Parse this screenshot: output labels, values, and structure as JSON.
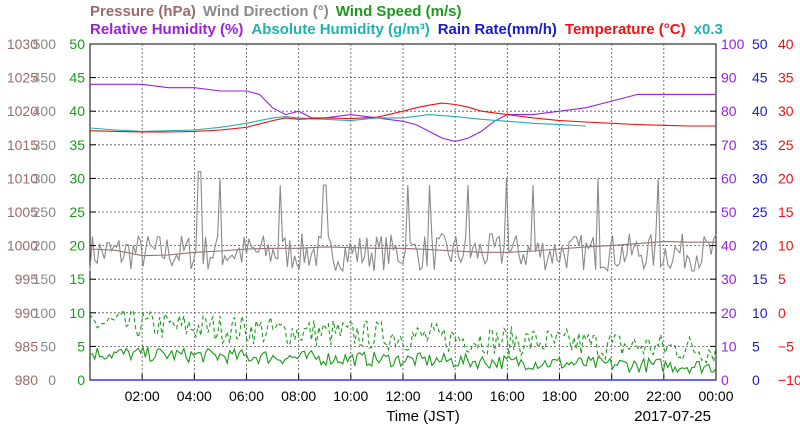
{
  "chart_data": {
    "type": "line",
    "legend": {
      "row1": [
        {
          "text": "Pressure (hPa)",
          "color": "#9b6b6b"
        },
        {
          "text": "Wind Direction (°)",
          "color": "#8a8a8a"
        },
        {
          "text": "Wind Speed (m/s)",
          "color": "#1a9a1a"
        }
      ],
      "row2": [
        {
          "text": "Relative Humidity (%)",
          "color": "#9a22dd"
        },
        {
          "text": "Absolute Humidity (g/m³)",
          "color": "#22b0b0"
        },
        {
          "text": "Rain Rate(mm/h)",
          "color": "#1a1ad0"
        },
        {
          "text": "Temperature (°C)",
          "color": "#ee1111"
        },
        {
          "text": "x0.3",
          "color": "#22b0b0"
        }
      ]
    },
    "xlabel": "Time (JST)",
    "date": "2017-07-25",
    "x_range": [
      0,
      24
    ],
    "x_ticks": [
      "02:00",
      "04:00",
      "06:00",
      "08:00",
      "10:00",
      "12:00",
      "14:00",
      "16:00",
      "18:00",
      "20:00",
      "22:00",
      "00:00"
    ],
    "grid": true,
    "axes": {
      "pressure": {
        "color": "#9b6b6b",
        "range": [
          980,
          1030
        ],
        "ticks": [
          "980",
          "985",
          "990",
          "995",
          "1000",
          "1005",
          "1010",
          "1015",
          "1020",
          "1025",
          "1030"
        ]
      },
      "wind_direction": {
        "color": "#8a8a8a",
        "range": [
          0,
          500
        ],
        "ticks": [
          "0",
          "50",
          "100",
          "150",
          "200",
          "250",
          "300",
          "350",
          "400",
          "450",
          "500"
        ]
      },
      "wind_speed": {
        "color": "#1a9a1a",
        "range": [
          0,
          50
        ],
        "ticks": [
          "0",
          "5",
          "10",
          "15",
          "20",
          "25",
          "30",
          "35",
          "40",
          "45",
          "50"
        ]
      },
      "relative_humidity": {
        "color": "#9a22dd",
        "range": [
          0,
          100
        ],
        "ticks": [
          "0",
          "10",
          "20",
          "30",
          "40",
          "50",
          "60",
          "70",
          "80",
          "90",
          "100"
        ]
      },
      "rain_rate": {
        "color": "#1a1ad0",
        "range": [
          0,
          50
        ],
        "ticks": [
          "0",
          "5",
          "10",
          "15",
          "20",
          "25",
          "30",
          "35",
          "40",
          "45",
          "50"
        ]
      },
      "temperature": {
        "color": "#ee1111",
        "range": [
          -10,
          40
        ],
        "ticks": [
          "−10",
          "−5",
          "0",
          "5",
          "10",
          "15",
          "20",
          "25",
          "30",
          "35",
          "40"
        ]
      }
    },
    "series": [
      {
        "name": "Relative Humidity (%)",
        "axis": "relative_humidity",
        "color": "#9a22dd",
        "style": "solid",
        "x": [
          0,
          1,
          2,
          3,
          4,
          5,
          6,
          6.5,
          7,
          7.5,
          8,
          8.5,
          9,
          10,
          11,
          12,
          12.5,
          13,
          13.5,
          14,
          14.5,
          15,
          15.5,
          16,
          17,
          18,
          19,
          20,
          21,
          22,
          23,
          24
        ],
        "y": [
          88,
          88,
          88,
          87,
          87,
          86,
          86,
          85,
          81,
          79,
          80,
          78,
          78,
          79,
          78,
          77,
          76,
          74,
          72,
          71,
          72,
          74,
          77,
          79,
          79,
          80,
          81,
          83,
          85,
          85,
          85,
          85
        ]
      },
      {
        "name": "Absolute Humidity (g/m³) x0.3",
        "axis": "wind_speed",
        "color": "#22b0b0",
        "style": "solid",
        "x": [
          0,
          1,
          2,
          3,
          4,
          5,
          6,
          7,
          7.5,
          8,
          9,
          10,
          11,
          12,
          13,
          14,
          15,
          16,
          17,
          18,
          19
        ],
        "y": [
          37.5,
          37.2,
          37.0,
          37.1,
          37.2,
          37.6,
          38.2,
          39.0,
          39.2,
          39.0,
          38.8,
          38.6,
          39.0,
          39.0,
          39.5,
          39.2,
          38.8,
          38.5,
          38.2,
          38.0,
          37.8
        ]
      },
      {
        "name": "Temperature (°C)",
        "axis": "temperature",
        "color": "#ee1111",
        "style": "solid",
        "x": [
          0,
          1,
          2,
          3,
          4,
          5,
          6,
          7,
          7.5,
          8,
          9,
          10,
          11,
          12,
          12.5,
          13,
          13.5,
          14,
          14.5,
          15,
          16,
          17,
          18,
          19,
          20,
          21,
          22,
          23,
          24
        ],
        "y": [
          27.1,
          27.0,
          26.9,
          26.9,
          27.0,
          27.2,
          27.6,
          28.6,
          29.0,
          28.8,
          29.0,
          28.9,
          29.1,
          30.0,
          30.5,
          30.9,
          31.2,
          31.0,
          30.6,
          30.0,
          29.5,
          29.0,
          28.6,
          28.4,
          28.2,
          28.0,
          27.9,
          27.8,
          27.8
        ]
      },
      {
        "name": "Pressure (hPa)",
        "axis": "pressure",
        "color": "#9b6b6b",
        "style": "solid",
        "x": [
          0,
          1,
          2,
          3,
          4,
          5,
          6,
          7,
          8,
          9,
          10,
          11,
          12,
          13,
          14,
          15,
          16,
          17,
          18,
          19,
          20,
          21,
          22,
          23,
          24
        ],
        "y": [
          999.5,
          999.3,
          998.5,
          998.6,
          999.0,
          999.2,
          999.5,
          999.6,
          999.6,
          999.8,
          999.7,
          999.6,
          999.6,
          999.4,
          999.2,
          999.0,
          999.0,
          999.2,
          999.5,
          999.8,
          1000.0,
          1000.3,
          1000.6,
          1000.5,
          1000.5
        ]
      },
      {
        "name": "Wind Direction (°)",
        "axis": "wind_direction",
        "color": "#8a8a8a",
        "style": "solid",
        "generated": "noise",
        "base": 190,
        "spread": 28,
        "spikes": [
          [
            4.2,
            310
          ],
          [
            5.0,
            300
          ],
          [
            7.3,
            290
          ],
          [
            9.0,
            290
          ],
          [
            12.2,
            290
          ],
          [
            13.0,
            290
          ],
          [
            14.5,
            290
          ],
          [
            16.0,
            300
          ],
          [
            17.0,
            290
          ],
          [
            19.5,
            300
          ],
          [
            21.8,
            300
          ]
        ]
      },
      {
        "name": "Wind Speed (m/s) gust",
        "axis": "wind_speed",
        "color": "#1a9a1a",
        "style": "dashed",
        "generated": "noise",
        "base_start": 8.5,
        "base_end": 4.5,
        "spread": 2.2
      },
      {
        "name": "Wind Speed (m/s)",
        "axis": "wind_speed",
        "color": "#1a9a1a",
        "style": "solid",
        "generated": "noise",
        "base_start": 4.0,
        "base_end": 2.0,
        "spread": 1.1
      }
    ]
  }
}
